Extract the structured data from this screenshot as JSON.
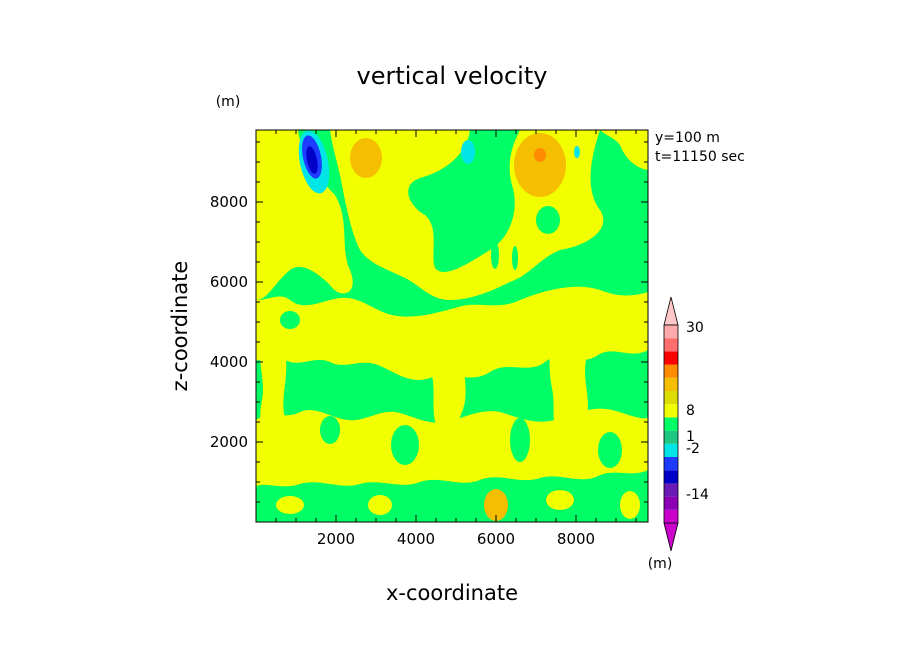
{
  "chart_data": {
    "type": "heatmap",
    "title": "vertical velocity",
    "xlabel": "x-coordinate",
    "ylabel": "z-coordinate",
    "axis_unit": "(m)",
    "info_lines": [
      "y=100 m",
      "t=11150 sec"
    ],
    "xlim": [
      0,
      9800
    ],
    "ylim": [
      0,
      9800
    ],
    "x_ticks": [
      2000,
      4000,
      6000,
      8000
    ],
    "y_ticks": [
      2000,
      4000,
      6000,
      8000
    ],
    "colorbar": {
      "unit": "(m)",
      "labels": [
        "30",
        "8",
        "1",
        "-2",
        "-14"
      ],
      "levels": [
        -30,
        -14,
        -10,
        -6,
        -2,
        -1.5,
        -1,
        0,
        1,
        1.5,
        2,
        4,
        8,
        14,
        20,
        30
      ],
      "colors": [
        "#cc00cc",
        "#8b00b5",
        "#6a1ab5",
        "#0000c8",
        "#1e3cff",
        "#00e6e6",
        "#1ec882",
        "#00ff66",
        "#f2ff00",
        "#dcdc00",
        "#f5be00",
        "#ff8c00",
        "#ff0000",
        "#ff6e6e",
        "#ffaaaa",
        "#ffc8c8"
      ]
    },
    "field_features": [
      {
        "label": "downdraft core",
        "x": 1400,
        "z": 9200,
        "w": -8
      },
      {
        "label": "updraft",
        "x": 2700,
        "z": 9000,
        "w": 3
      },
      {
        "label": "updraft",
        "x": 7100,
        "z": 8800,
        "w": 4
      },
      {
        "label": "weak downdraft",
        "x": 5200,
        "z": 9300,
        "w": -1.5
      },
      {
        "label": "updraft",
        "x": 6000,
        "z": 500,
        "w": 2.5
      }
    ]
  }
}
